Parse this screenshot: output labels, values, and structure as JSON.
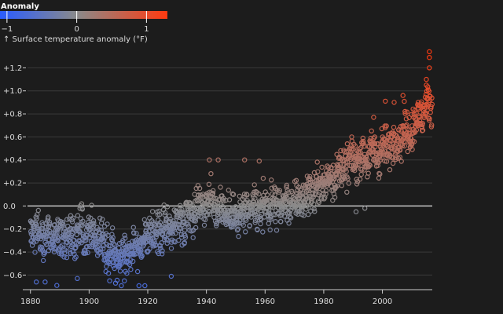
{
  "legend": {
    "title": "Anomaly",
    "ticks": [
      "−1",
      "0",
      "1"
    ],
    "tick_values": [
      -1,
      0,
      1
    ],
    "domain": [
      -1.1,
      1.3
    ],
    "colors": [
      "#2a5cff",
      "#8a8a8a",
      "#ff3a10"
    ]
  },
  "chart_data": {
    "type": "scatter",
    "ylabel": "↑ Surface temperature anomaly (°F)",
    "xlabel": "",
    "xlim": [
      1879,
      2017
    ],
    "ylim": [
      -0.72,
      1.38
    ],
    "x_ticks": [
      1880,
      1900,
      1920,
      1940,
      1960,
      1980,
      2000
    ],
    "y_ticks": [
      -0.6,
      -0.4,
      -0.2,
      0.0,
      0.2,
      0.4,
      0.6,
      0.8,
      1.0,
      1.2
    ],
    "y_tick_labels": [
      "−0.6",
      "−0.4",
      "−0.2",
      "0.0",
      "+0.2",
      "+0.4",
      "+0.6",
      "+0.8",
      "+1.0",
      "+1.2"
    ],
    "zero_line": 0,
    "grid": "horizontal",
    "point_style": "hollow circle",
    "trend_anchors": [
      [
        1880,
        -0.2
      ],
      [
        1890,
        -0.3
      ],
      [
        1900,
        -0.2
      ],
      [
        1910,
        -0.45
      ],
      [
        1920,
        -0.27
      ],
      [
        1930,
        -0.15
      ],
      [
        1940,
        0.05
      ],
      [
        1950,
        -0.1
      ],
      [
        1960,
        0.0
      ],
      [
        1970,
        0.02
      ],
      [
        1980,
        0.2
      ],
      [
        1990,
        0.4
      ],
      [
        2000,
        0.48
      ],
      [
        2010,
        0.68
      ],
      [
        2017,
        0.92
      ]
    ],
    "points": [
      [
        1882,
        -0.66
      ],
      [
        1885,
        -0.66
      ],
      [
        1889,
        -0.69
      ],
      [
        1896,
        -0.63
      ],
      [
        1907,
        -0.65
      ],
      [
        1909,
        -0.67
      ],
      [
        1911,
        -0.7
      ],
      [
        1912,
        -0.65
      ],
      [
        1917,
        -0.78
      ],
      [
        1919,
        -0.72
      ],
      [
        1928,
        -0.61
      ],
      [
        1944,
        0.4
      ],
      [
        1941,
        0.4
      ],
      [
        1958,
        0.39
      ],
      [
        1953,
        0.4
      ],
      [
        1997,
        0.77
      ],
      [
        2001,
        0.91
      ],
      [
        2004,
        0.9
      ],
      [
        2007,
        0.96
      ],
      [
        2012,
        0.88
      ],
      [
        2016,
        1.2
      ],
      [
        2016,
        1.29
      ],
      [
        2016,
        1.34
      ],
      [
        2015,
        1.1
      ],
      [
        2015,
        1.05
      ],
      [
        1991,
        -0.05
      ],
      [
        1994,
        -0.02
      ]
    ]
  }
}
